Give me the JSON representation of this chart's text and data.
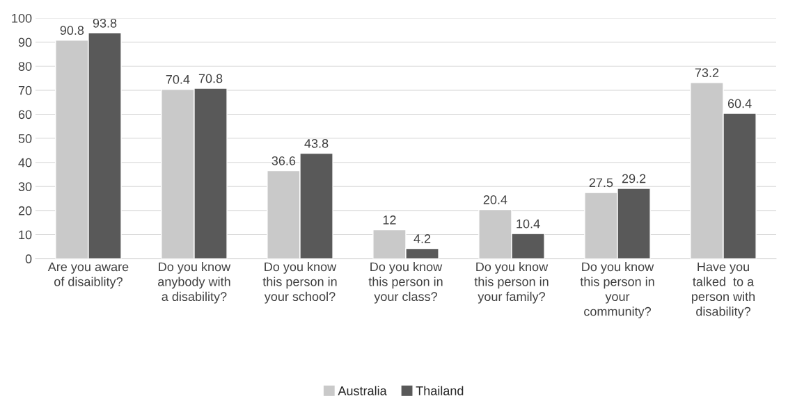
{
  "chart_data": {
    "type": "bar",
    "categories": [
      "Are you aware\nof disaiblity?",
      "Do you know\nanybody with\na disability?",
      "Do you know\nthis person in\nyour school?",
      "Do you know\nthis person in\nyour class?",
      "Do you know\nthis person in\nyour family?",
      "Do you know\nthis person in\nyour\ncommunity?",
      "Have you\ntalked  to a\nperson with\ndisability?"
    ],
    "series": [
      {
        "name": "Australia",
        "color": "#c9c9c9",
        "values": [
          90.8,
          70.4,
          36.6,
          12,
          20.4,
          27.5,
          73.2
        ]
      },
      {
        "name": "Thailand",
        "color": "#595959",
        "values": [
          93.8,
          70.8,
          43.8,
          4.2,
          10.4,
          29.2,
          60.4
        ]
      }
    ],
    "ylim": [
      0,
      100
    ],
    "yticks": [
      0,
      10,
      20,
      30,
      40,
      50,
      60,
      70,
      80,
      90,
      100
    ],
    "grid": "y",
    "legend": "bottom",
    "data_labels": true
  }
}
